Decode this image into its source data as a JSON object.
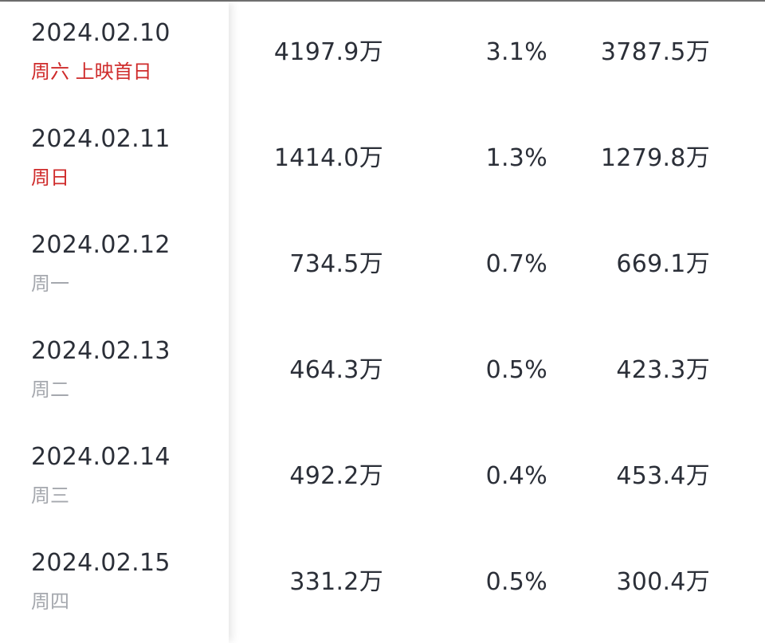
{
  "rows": [
    {
      "date": "2024.02.10",
      "weekday": "周六 上映首日",
      "highlight": true,
      "box_office": "4197.9万",
      "share": "3.1%",
      "split": "3787.5万"
    },
    {
      "date": "2024.02.11",
      "weekday": "周日",
      "highlight": true,
      "box_office": "1414.0万",
      "share": "1.3%",
      "split": "1279.8万"
    },
    {
      "date": "2024.02.12",
      "weekday": "周一",
      "highlight": false,
      "box_office": "734.5万",
      "share": "0.7%",
      "split": "669.1万"
    },
    {
      "date": "2024.02.13",
      "weekday": "周二",
      "highlight": false,
      "box_office": "464.3万",
      "share": "0.5%",
      "split": "423.3万"
    },
    {
      "date": "2024.02.14",
      "weekday": "周三",
      "highlight": false,
      "box_office": "492.2万",
      "share": "0.4%",
      "split": "453.4万"
    },
    {
      "date": "2024.02.15",
      "weekday": "周四",
      "highlight": false,
      "box_office": "331.2万",
      "share": "0.5%",
      "split": "300.4万"
    }
  ],
  "colors": {
    "text": "#2b2f38",
    "weekday_muted": "#a5a8ae",
    "weekday_highlight": "#cf2b2b"
  }
}
